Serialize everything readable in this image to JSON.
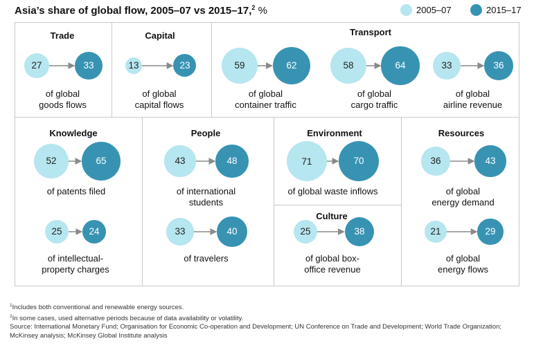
{
  "title": {
    "main": "Asia’s share of global flow, 2005–07 vs 2015–17,",
    "sup": "2",
    "unit": "%"
  },
  "legend": [
    {
      "label": "2005–07",
      "color": "#b6e6ef"
    },
    {
      "label": "2015–17",
      "color": "#3893b3"
    }
  ],
  "sections": {
    "trade": "Trade",
    "capital": "Capital",
    "transport": "Transport",
    "knowledge": "Knowledge",
    "people": "People",
    "environment": "Environment",
    "resources": "Resources",
    "culture": "Culture"
  },
  "chart_data": {
    "type": "bubble-comparison",
    "series": [
      {
        "name": "2005–07",
        "color": "#b6e6ef"
      },
      {
        "name": "2015–17",
        "color": "#3893b3"
      }
    ],
    "items": [
      {
        "id": "goods",
        "section": "Trade",
        "caption": [
          "of global",
          "goods flows"
        ],
        "v2005_07": 27,
        "v2015_17": 33
      },
      {
        "id": "capital",
        "section": "Capital",
        "caption": [
          "of global",
          "capital flows"
        ],
        "v2005_07": 13,
        "v2015_17": 23
      },
      {
        "id": "container",
        "section": "Transport",
        "caption": [
          "of global",
          "container traffic"
        ],
        "v2005_07": 59,
        "v2015_17": 62
      },
      {
        "id": "cargo",
        "section": "Transport",
        "caption": [
          "of global",
          "cargo traffic"
        ],
        "v2005_07": 58,
        "v2015_17": 64
      },
      {
        "id": "airline",
        "section": "Transport",
        "caption": [
          "of global",
          "airline revenue"
        ],
        "v2005_07": 33,
        "v2015_17": 36
      },
      {
        "id": "patents",
        "section": "Knowledge",
        "caption": [
          "of patents filed"
        ],
        "v2005_07": 52,
        "v2015_17": 65
      },
      {
        "id": "ip",
        "section": "Knowledge",
        "caption": [
          "of intellectual-",
          "property charges"
        ],
        "v2005_07": 25,
        "v2015_17": 24
      },
      {
        "id": "students",
        "section": "People",
        "caption": [
          "of international",
          "students"
        ],
        "v2005_07": 43,
        "v2015_17": 48
      },
      {
        "id": "travelers",
        "section": "People",
        "caption": [
          "of travelers"
        ],
        "v2005_07": 33,
        "v2015_17": 40
      },
      {
        "id": "waste",
        "section": "Environment",
        "caption": [
          "of global waste inflows"
        ],
        "v2005_07": 71,
        "v2015_17": 70
      },
      {
        "id": "boxoffice",
        "section": "Culture",
        "caption": [
          "of global box-",
          "office revenue"
        ],
        "v2005_07": 25,
        "v2015_17": 38
      },
      {
        "id": "energy-demand",
        "section": "Resources",
        "caption": [
          "of global",
          "energy demand"
        ],
        "v2005_07": 36,
        "v2015_17": 43
      },
      {
        "id": "energy-flows",
        "section": "Resources",
        "caption": [
          "of global",
          "energy flows"
        ],
        "v2005_07": 21,
        "v2015_17": 29
      }
    ]
  },
  "footnotes": {
    "n1": {
      "mark": "1",
      "text": "Includes both conventional and renewable energy sources."
    },
    "n2": {
      "mark": "2",
      "text": "In some cases, used alternative periods because of data availability or volatility."
    },
    "source": "Source: International Monetary Fund; Organisation for Economic Co-operation and Development; UN Conference on Trade and Development; World Trade Organization; McKinsey analysis; McKinsey Global Institute analysis"
  }
}
